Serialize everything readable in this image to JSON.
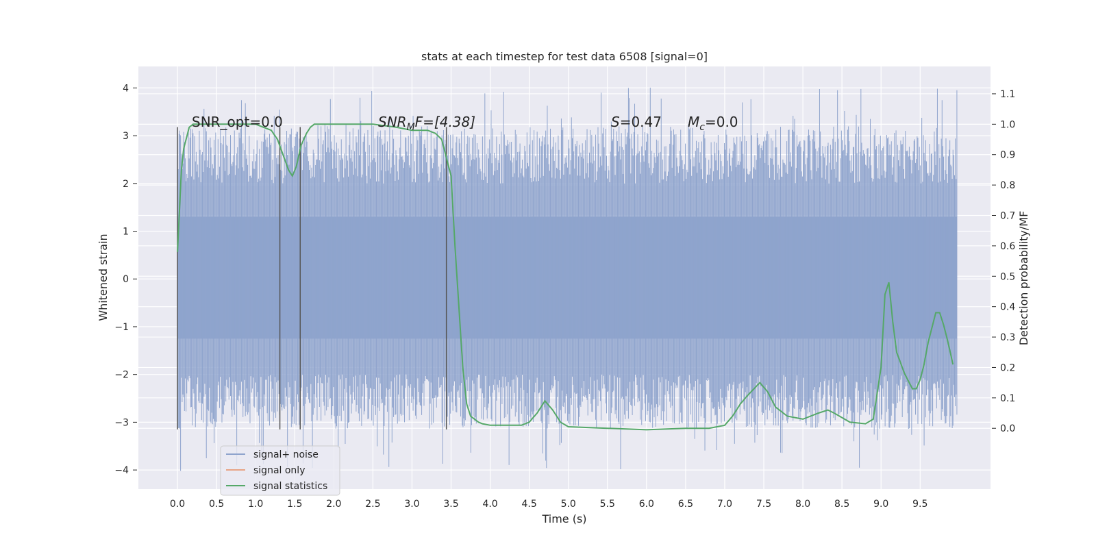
{
  "chart_data": {
    "type": "line",
    "title": "stats at each timestep for test data 6508 [signal=0]",
    "xlabel": "Time (s)",
    "ylabel_left": "Whitened strain",
    "ylabel_right": "Detection probability/MF",
    "xlim": [
      -0.5,
      10.4
    ],
    "ylim_left": [
      -4.4,
      4.45
    ],
    "ylim_right": [
      -0.2,
      1.19
    ],
    "x_ticks": [
      "0.0",
      "0.5",
      "1.0",
      "1.5",
      "2.0",
      "2.5",
      "3.0",
      "3.5",
      "4.0",
      "4.5",
      "5.0",
      "5.5",
      "6.0",
      "6.5",
      "7.0",
      "7.5",
      "8.0",
      "8.5",
      "9.0",
      "9.5"
    ],
    "y_ticks_left": [
      "4",
      "3",
      "2",
      "1",
      "0",
      "−1",
      "−2",
      "−3",
      "−4"
    ],
    "y_ticks_right": [
      "1.1",
      "1.0",
      "0.9",
      "0.8",
      "0.7",
      "0.6",
      "0.5",
      "0.4",
      "0.3",
      "0.2",
      "0.1",
      "0.0"
    ],
    "grid": true,
    "legend_location": "lower-left",
    "annotations": {
      "snr_opt": "SNR_opt=0.0",
      "snr_mf_sym": "SNR",
      "snr_mf_sub": "M",
      "snr_mf_rest": "F=[4.38]",
      "s_sym": "S",
      "s_rest": "=0.47",
      "mc_sym": "M",
      "mc_sub": "c",
      "mc_rest": "=0.0"
    },
    "vertical_markers": [
      {
        "x": 0.0,
        "ymin": -3.15,
        "ymax": 3.18
      },
      {
        "x": 1.31,
        "ymin": -3.15,
        "ymax": 3.18
      },
      {
        "x": 1.57,
        "ymin": -3.15,
        "ymax": 3.18
      },
      {
        "x": 3.44,
        "ymin": -3.15,
        "ymax": 3.18
      }
    ],
    "series": [
      {
        "name": "signal+ noise",
        "color": "#8fa4cd",
        "x_range": [
          0.0,
          9.97
        ],
        "core_band": [
          -1.25,
          1.3
        ],
        "typical_peak_range": [
          2.0,
          3.2
        ],
        "max": 4.05,
        "min": -4.02
      },
      {
        "name": "signal only",
        "color": "#e8a485",
        "values": []
      },
      {
        "name": "signal statistics",
        "color": "#55a868",
        "x": [
          0.0,
          0.05,
          0.08,
          0.12,
          0.15,
          0.2,
          0.3,
          0.5,
          0.8,
          1.0,
          1.1,
          1.2,
          1.28,
          1.35,
          1.42,
          1.47,
          1.52,
          1.58,
          1.65,
          1.7,
          1.75,
          1.8,
          2.0,
          2.2,
          2.5,
          2.8,
          3.0,
          3.2,
          3.3,
          3.38,
          3.43,
          3.5,
          3.55,
          3.6,
          3.65,
          3.7,
          3.75,
          3.8,
          3.85,
          3.9,
          4.0,
          4.2,
          4.4,
          4.5,
          4.6,
          4.7,
          4.8,
          4.9,
          5.0,
          5.5,
          6.0,
          6.5,
          6.8,
          7.0,
          7.1,
          7.2,
          7.3,
          7.45,
          7.55,
          7.65,
          7.8,
          8.0,
          8.2,
          8.32,
          8.4,
          8.6,
          8.8,
          8.9,
          9.0,
          9.05,
          9.1,
          9.15,
          9.2,
          9.3,
          9.4,
          9.45,
          9.5,
          9.55,
          9.6,
          9.65,
          9.7,
          9.75,
          9.8,
          9.85,
          9.92
        ],
        "values": [
          0.58,
          0.85,
          0.92,
          0.96,
          0.99,
          1.0,
          1.0,
          1.0,
          1.0,
          1.0,
          0.99,
          0.98,
          0.95,
          0.9,
          0.85,
          0.83,
          0.86,
          0.93,
          0.97,
          0.99,
          1.0,
          1.0,
          1.0,
          1.0,
          1.0,
          0.99,
          0.98,
          0.98,
          0.97,
          0.95,
          0.9,
          0.83,
          0.6,
          0.4,
          0.2,
          0.08,
          0.04,
          0.03,
          0.02,
          0.015,
          0.01,
          0.01,
          0.01,
          0.02,
          0.05,
          0.09,
          0.06,
          0.02,
          0.005,
          0.0,
          -0.005,
          0.0,
          0.0,
          0.01,
          0.04,
          0.08,
          0.11,
          0.15,
          0.12,
          0.07,
          0.04,
          0.03,
          0.05,
          0.06,
          0.05,
          0.02,
          0.015,
          0.03,
          0.2,
          0.44,
          0.48,
          0.35,
          0.25,
          0.18,
          0.13,
          0.13,
          0.16,
          0.21,
          0.28,
          0.33,
          0.38,
          0.38,
          0.34,
          0.29,
          0.21
        ]
      }
    ]
  }
}
